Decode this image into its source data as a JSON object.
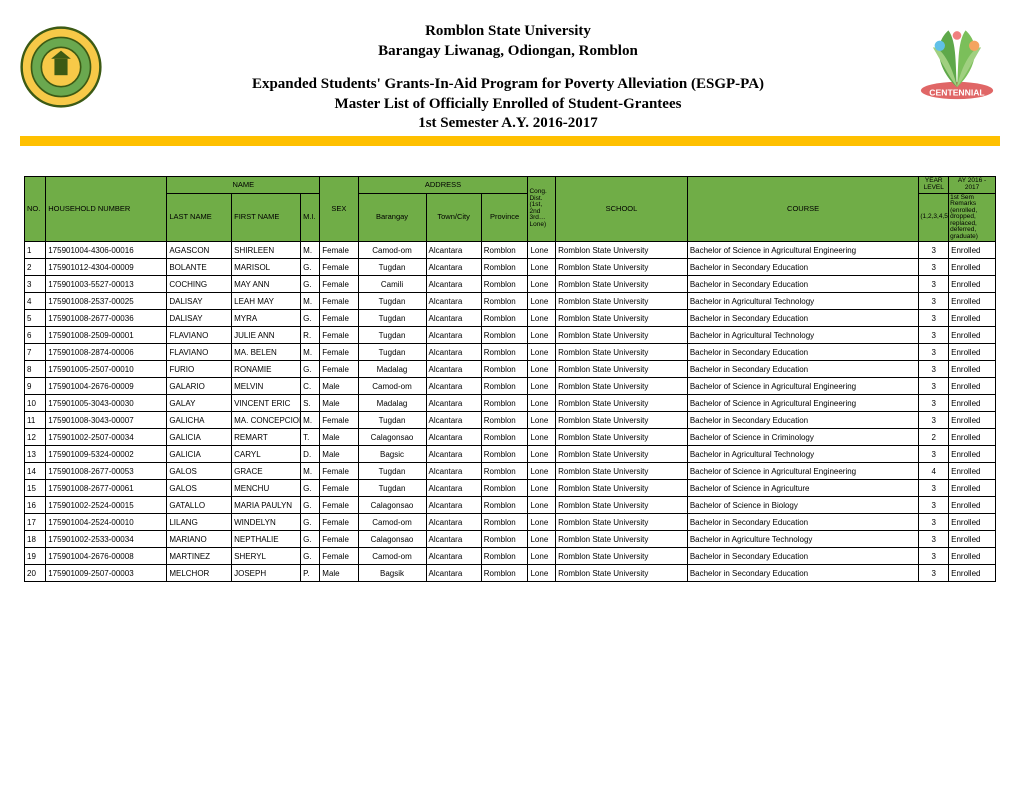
{
  "header": {
    "university": "Romblon State University",
    "address": "Barangay Liwanag, Odiongan, Romblon",
    "program": "Expanded Students' Grants-In-Aid Program for Poverty Alleviation (ESGP-PA)",
    "list_title": "Master List of Officially Enrolled of Student-Grantees",
    "semester": "1st Semester A.Y. 2016-2017"
  },
  "colors": {
    "header_green": "#70ad47",
    "bar_yellow": "#ffc000"
  },
  "columns": {
    "no": "NO.",
    "household": "HOUSEHOLD NUMBER",
    "name_group": "NAME",
    "last": "LAST NAME",
    "first": "FIRST NAME",
    "mi": "M.I.",
    "sex": "SEX",
    "address_group": "ADDRESS",
    "barangay": "Barangay",
    "town": "Town/City",
    "province": "Province",
    "cong": "Cong. Dist. (1st, 2nd 3rd… Lone)",
    "school": "SCHOOL",
    "course": "COURSE",
    "year_top": "YEAR LEVEL",
    "year_sub": "(1,2,3,4,5)",
    "ay_top": "AY 2016 - 2017",
    "remarks": "1st Sem Remarks (enrolled, dropped, replaced, deferred, graduate)"
  },
  "rows": [
    {
      "no": "1",
      "hh": "175901004-4306-00016",
      "last": "AGASCON",
      "first": "SHIRLEEN",
      "mi": "M.",
      "sex": "Female",
      "brgy": "Camod-om",
      "town": "Alcantara",
      "prov": "Romblon",
      "cong": "Lone",
      "school": "Romblon State University",
      "course": "Bachelor of Science in Agricultural Engineering",
      "year": "3",
      "rem": "Enrolled"
    },
    {
      "no": "2",
      "hh": "175901012-4304-00009",
      "last": "BOLANTE",
      "first": "MARISOL",
      "mi": "G.",
      "sex": "Female",
      "brgy": "Tugdan",
      "town": "Alcantara",
      "prov": "Romblon",
      "cong": "Lone",
      "school": "Romblon State University",
      "course": "Bachelor in Secondary Education",
      "year": "3",
      "rem": "Enrolled"
    },
    {
      "no": "3",
      "hh": "175901003-5527-00013",
      "last": "COCHING",
      "first": "MAY ANN",
      "mi": "G.",
      "sex": "Female",
      "brgy": "Camili",
      "town": "Alcantara",
      "prov": "Romblon",
      "cong": "Lone",
      "school": "Romblon State University",
      "course": "Bachelor in Secondary Education",
      "year": "3",
      "rem": "Enrolled"
    },
    {
      "no": "4",
      "hh": "175901008-2537-00025",
      "last": "DALISAY",
      "first": "LEAH MAY",
      "mi": "M.",
      "sex": "Female",
      "brgy": "Tugdan",
      "town": "Alcantara",
      "prov": "Romblon",
      "cong": "Lone",
      "school": "Romblon State University",
      "course": "Bachelor in Agricultural Technology",
      "year": "3",
      "rem": "Enrolled"
    },
    {
      "no": "5",
      "hh": "175901008-2677-00036",
      "last": "DALISAY",
      "first": "MYRA",
      "mi": "G.",
      "sex": "Female",
      "brgy": "Tugdan",
      "town": "Alcantara",
      "prov": "Romblon",
      "cong": "Lone",
      "school": "Romblon State University",
      "course": "Bachelor in Secondary Education",
      "year": "3",
      "rem": "Enrolled"
    },
    {
      "no": "6",
      "hh": "175901008-2509-00001",
      "last": "FLAVIANO",
      "first": "JULIE ANN",
      "mi": "R.",
      "sex": "Female",
      "brgy": "Tugdan",
      "town": "Alcantara",
      "prov": "Romblon",
      "cong": "Lone",
      "school": "Romblon State University",
      "course": "Bachelor in Agricultural Technology",
      "year": "3",
      "rem": "Enrolled"
    },
    {
      "no": "7",
      "hh": "175901008-2874-00006",
      "last": "FLAVIANO",
      "first": "MA. BELEN",
      "mi": "M.",
      "sex": "Female",
      "brgy": "Tugdan",
      "town": "Alcantara",
      "prov": "Romblon",
      "cong": "Lone",
      "school": "Romblon State University",
      "course": "Bachelor in Secondary Education",
      "year": "3",
      "rem": "Enrolled"
    },
    {
      "no": "8",
      "hh": "175901005-2507-00010",
      "last": "FURIO",
      "first": "RONAMIE",
      "mi": "G.",
      "sex": "Female",
      "brgy": "Madalag",
      "town": "Alcantara",
      "prov": "Romblon",
      "cong": "Lone",
      "school": "Romblon State University",
      "course": "Bachelor in Secondary Education",
      "year": "3",
      "rem": "Enrolled"
    },
    {
      "no": "9",
      "hh": "175901004-2676-00009",
      "last": "GALARIO",
      "first": "MELVIN",
      "mi": "C.",
      "sex": "Male",
      "brgy": "Camod-om",
      "town": "Alcantara",
      "prov": "Romblon",
      "cong": "Lone",
      "school": "Romblon State University",
      "course": "Bachelor of Science in Agricultural Engineering",
      "year": "3",
      "rem": "Enrolled"
    },
    {
      "no": "10",
      "hh": "175901005-3043-00030",
      "last": "GALAY",
      "first": "VINCENT ERIC",
      "mi": "S.",
      "sex": "Male",
      "brgy": "Madalag",
      "town": "Alcantara",
      "prov": "Romblon",
      "cong": "Lone",
      "school": "Romblon State University",
      "course": "Bachelor of Science in Agricultural Engineering",
      "year": "3",
      "rem": "Enrolled"
    },
    {
      "no": "11",
      "hh": "175901008-3043-00007",
      "last": "GALICHA",
      "first": "MA. CONCEPCION",
      "mi": "M.",
      "sex": "Female",
      "brgy": "Tugdan",
      "town": "Alcantara",
      "prov": "Romblon",
      "cong": "Lone",
      "school": "Romblon State University",
      "course": "Bachelor in Secondary Education",
      "year": "3",
      "rem": "Enrolled"
    },
    {
      "no": "12",
      "hh": "175901002-2507-00034",
      "last": "GALICIA",
      "first": "REMART",
      "mi": "T.",
      "sex": "Male",
      "brgy": "Calagonsao",
      "town": "Alcantara",
      "prov": "Romblon",
      "cong": "Lone",
      "school": "Romblon State University",
      "course": "Bachelor of Science in Criminology",
      "year": "2",
      "rem": "Enrolled"
    },
    {
      "no": "13",
      "hh": "175901009-5324-00002",
      "last": "GALICIA",
      "first": "CARYL",
      "mi": "D.",
      "sex": "Male",
      "brgy": "Bagsic",
      "town": "Alcantara",
      "prov": "Romblon",
      "cong": "Lone",
      "school": "Romblon State University",
      "course": "Bachelor in Agricultural Technology",
      "year": "3",
      "rem": "Enrolled"
    },
    {
      "no": "14",
      "hh": "175901008-2677-00053",
      "last": "GALOS",
      "first": "GRACE",
      "mi": "M.",
      "sex": "Female",
      "brgy": "Tugdan",
      "town": "Alcantara",
      "prov": "Romblon",
      "cong": "Lone",
      "school": "Romblon State University",
      "course": "Bachelor of Science in Agricultural Engineering",
      "year": "4",
      "rem": "Enrolled"
    },
    {
      "no": "15",
      "hh": "175901008-2677-00061",
      "last": "GALOS",
      "first": "MENCHU",
      "mi": "G.",
      "sex": "Female",
      "brgy": "Tugdan",
      "town": "Alcantara",
      "prov": "Romblon",
      "cong": "Lone",
      "school": "Romblon State University",
      "course": "Bachelor of Science in Agriculture",
      "year": "3",
      "rem": "Enrolled"
    },
    {
      "no": "16",
      "hh": "175901002-2524-00015",
      "last": "GATALLO",
      "first": "MARIA PAULYN",
      "mi": "G.",
      "sex": "Female",
      "brgy": "Calagonsao",
      "town": "Alcantara",
      "prov": "Romblon",
      "cong": "Lone",
      "school": "Romblon State University",
      "course": "Bachelor of Science in Biology",
      "year": "3",
      "rem": "Enrolled"
    },
    {
      "no": "17",
      "hh": "175901004-2524-00010",
      "last": "LILANG",
      "first": "WINDELYN",
      "mi": "G.",
      "sex": "Female",
      "brgy": "Camod-om",
      "town": "Alcantara",
      "prov": "Romblon",
      "cong": "Lone",
      "school": "Romblon State University",
      "course": "Bachelor in Secondary Education",
      "year": "3",
      "rem": "Enrolled"
    },
    {
      "no": "18",
      "hh": "175901002-2533-00034",
      "last": "MARIANO",
      "first": "NEPTHALIE",
      "mi": "G.",
      "sex": "Female",
      "brgy": "Calagonsao",
      "town": "Alcantara",
      "prov": "Romblon",
      "cong": "Lone",
      "school": "Romblon State University",
      "course": "Bachelor in Agriculture Technology",
      "year": "3",
      "rem": "Enrolled"
    },
    {
      "no": "19",
      "hh": "175901004-2676-00008",
      "last": "MARTINEZ",
      "first": "SHERYL",
      "mi": "G.",
      "sex": "Female",
      "brgy": "Camod-om",
      "town": "Alcantara",
      "prov": "Romblon",
      "cong": "Lone",
      "school": "Romblon State University",
      "course": "Bachelor in Secondary Education",
      "year": "3",
      "rem": "Enrolled"
    },
    {
      "no": "20",
      "hh": "175901009-2507-00003",
      "last": "MELCHOR",
      "first": "JOSEPH",
      "mi": "P.",
      "sex": "Male",
      "brgy": "Bagsik",
      "town": "Alcantara",
      "prov": "Romblon",
      "cong": "Lone",
      "school": "Romblon State University",
      "course": "Bachelor in Secondary Education",
      "year": "3",
      "rem": "Enrolled"
    }
  ]
}
